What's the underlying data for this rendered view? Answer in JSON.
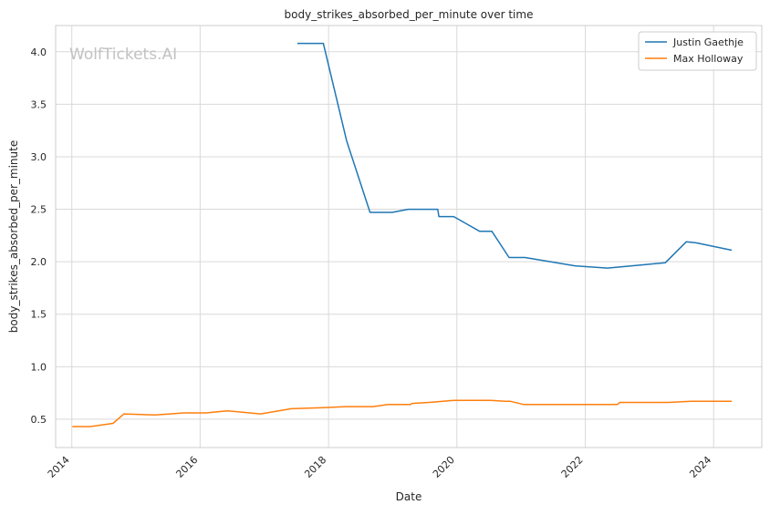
{
  "chart_data": {
    "type": "line",
    "title": "body_strikes_absorbed_per_minute over time",
    "xlabel": "Date",
    "ylabel": "body_strikes_absorbed_per_minute",
    "xlim": [
      "2013-10-01",
      "2024-10-01"
    ],
    "ylim": [
      0.23,
      4.25
    ],
    "x_ticks": [
      "2014",
      "2016",
      "2018",
      "2020",
      "2022",
      "2024"
    ],
    "y_ticks": [
      "0.5",
      "1.0",
      "1.5",
      "2.0",
      "2.5",
      "3.0",
      "3.5",
      "4.0"
    ],
    "grid": true,
    "legend_position": "top-right",
    "watermark": "WolfTickets.AI",
    "series": [
      {
        "name": "Justin Gaethje",
        "color": "#1f77b4",
        "points": [
          [
            "2017-07-07",
            4.08
          ],
          [
            "2017-12-02",
            4.08
          ],
          [
            "2018-04-14",
            3.15
          ],
          [
            "2018-08-25",
            2.47
          ],
          [
            "2018-12-29",
            2.47
          ],
          [
            "2019-03-30",
            2.5
          ],
          [
            "2019-09-14",
            2.5
          ],
          [
            "2019-09-21",
            2.43
          ],
          [
            "2019-12-14",
            2.43
          ],
          [
            "2020-05-09",
            2.29
          ],
          [
            "2020-07-18",
            2.29
          ],
          [
            "2020-10-24",
            2.04
          ],
          [
            "2021-01-23",
            2.04
          ],
          [
            "2021-11-06",
            1.96
          ],
          [
            "2022-05-07",
            1.94
          ],
          [
            "2023-04-01",
            1.99
          ],
          [
            "2023-07-29",
            2.19
          ],
          [
            "2023-09-23",
            2.18
          ],
          [
            "2024-04-13",
            2.11
          ]
        ]
      },
      {
        "name": "Max Holloway",
        "color": "#ff7f0e",
        "points": [
          [
            "2014-01-04",
            0.43
          ],
          [
            "2014-04-16",
            0.43
          ],
          [
            "2014-08-23",
            0.46
          ],
          [
            "2014-10-25",
            0.55
          ],
          [
            "2015-04-18",
            0.54
          ],
          [
            "2015-07-15",
            0.55
          ],
          [
            "2015-09-29",
            0.56
          ],
          [
            "2016-02-01",
            0.56
          ],
          [
            "2016-06-04",
            0.58
          ],
          [
            "2016-12-10",
            0.55
          ],
          [
            "2017-06-03",
            0.6
          ],
          [
            "2017-12-02",
            0.61
          ],
          [
            "2018-04-07",
            0.62
          ],
          [
            "2018-09-09",
            0.62
          ],
          [
            "2018-12-08",
            0.64
          ],
          [
            "2019-04-13",
            0.64
          ],
          [
            "2019-04-20",
            0.65
          ],
          [
            "2019-07-27",
            0.66
          ],
          [
            "2019-12-14",
            0.68
          ],
          [
            "2020-07-11",
            0.68
          ],
          [
            "2020-10-01",
            0.67
          ],
          [
            "2020-11-01",
            0.67
          ],
          [
            "2021-01-16",
            0.64
          ],
          [
            "2021-11-13",
            0.64
          ],
          [
            "2022-07-02",
            0.64
          ],
          [
            "2022-07-16",
            0.66
          ],
          [
            "2023-04-15",
            0.66
          ],
          [
            "2023-08-26",
            0.67
          ],
          [
            "2024-04-13",
            0.67
          ]
        ]
      }
    ]
  }
}
